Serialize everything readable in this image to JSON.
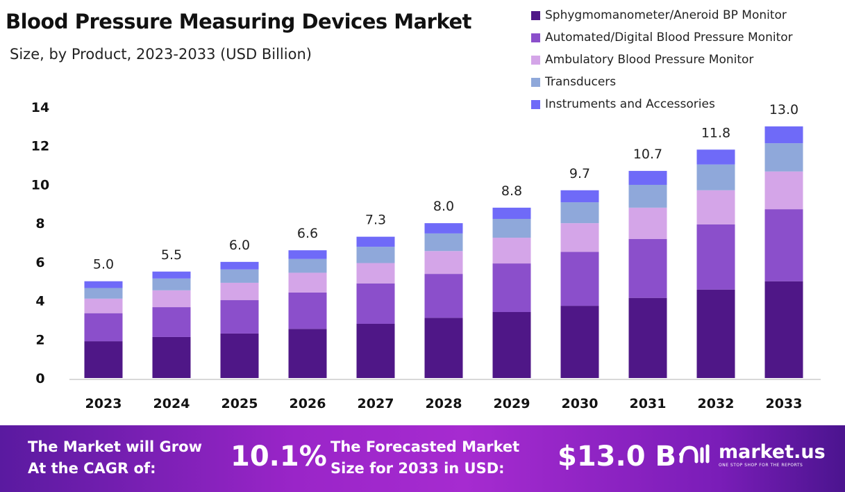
{
  "title": "Blood Pressure Measuring Devices Market",
  "subtitle": "Size, by Product, 2023-2033 (USD Billion)",
  "chart_data": {
    "type": "bar",
    "stacked": true,
    "title": "Blood Pressure Measuring Devices Market",
    "subtitle": "Size, by Product, 2023-2033 (USD Billion)",
    "categories": [
      "2023",
      "2024",
      "2025",
      "2026",
      "2027",
      "2028",
      "2029",
      "2030",
      "2031",
      "2032",
      "2033"
    ],
    "series": [
      {
        "name": "Sphygmomanometer/Aneroid BP Monitor",
        "color": "#4f1787",
        "values": [
          1.9,
          2.12,
          2.3,
          2.54,
          2.8,
          3.11,
          3.41,
          3.73,
          4.14,
          4.57,
          5.0
        ]
      },
      {
        "name": "Automated/Digital Blood Pressure Monitor",
        "color": "#8b4fcb",
        "values": [
          1.45,
          1.54,
          1.73,
          1.88,
          2.09,
          2.27,
          2.51,
          2.79,
          3.04,
          3.37,
          3.72
        ]
      },
      {
        "name": "Ambulatory Blood Pressure Monitor",
        "color": "#d4a5e8",
        "values": [
          0.75,
          0.87,
          0.89,
          1.02,
          1.05,
          1.18,
          1.33,
          1.48,
          1.62,
          1.76,
          1.95
        ]
      },
      {
        "name": "Transducers",
        "color": "#8fa8da",
        "values": [
          0.55,
          0.61,
          0.69,
          0.71,
          0.84,
          0.91,
          0.97,
          1.08,
          1.18,
          1.33,
          1.46
        ]
      },
      {
        "name": "Instruments and Accessories",
        "color": "#6f6af8",
        "values": [
          0.35,
          0.36,
          0.39,
          0.45,
          0.52,
          0.53,
          0.58,
          0.62,
          0.72,
          0.77,
          0.87
        ]
      }
    ],
    "totals": [
      "5.0",
      "5.5",
      "6.0",
      "6.6",
      "7.3",
      "8.0",
      "8.8",
      "9.7",
      "10.7",
      "11.8",
      "13.0"
    ],
    "yticks": [
      0,
      2,
      4,
      6,
      8,
      10,
      12,
      14
    ],
    "ylim": [
      0,
      14
    ],
    "grid": false,
    "legend": "top-right"
  },
  "footer": {
    "cagr_label_1": "The Market will Grow",
    "cagr_label_2": "At the CAGR of:",
    "cagr_value": "10.1%",
    "forecast_label_1": "The Forecasted Market",
    "forecast_label_2": "Size for 2033 in USD:",
    "forecast_value": "$13.0 B",
    "brand": "market.us",
    "brand_tagline": "ONE STOP SHOP FOR THE REPORTS"
  }
}
